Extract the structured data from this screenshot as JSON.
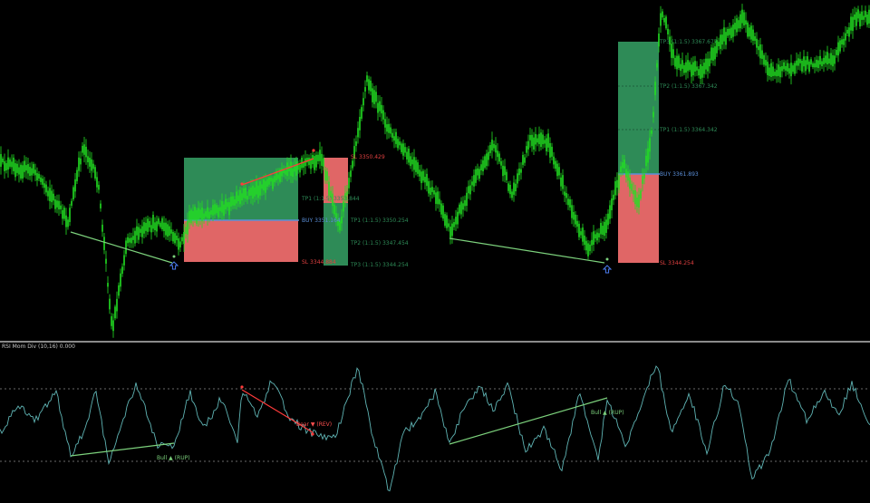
{
  "colors": {
    "candles": "#22e022",
    "tp_zone": "#2e8b57",
    "sl_zone": "#e06666",
    "buy_line": "#5b8fd9",
    "divergence_bull": "#7cd17c",
    "divergence_bear": "#ff3b3b",
    "oscillator": "#5fb4b4",
    "arrow_up": "#4b7cf0"
  },
  "icons": {
    "buy_signal": "up-arrow-icon"
  },
  "trades": [
    {
      "labels": {
        "buy": "BUY 3351.164",
        "sl": "SL 3344.884",
        "tp1": "TP1 (1:1.5) 3353.844",
        "tp_zone": "TP1 (1:1.5) 3353.844"
      }
    },
    {
      "labels": {
        "sl": "SL 3350.429",
        "tp1": "TP1 (1:1.5) 3350.254",
        "tp2": "TP2 (1:1.5) 3347.454",
        "tp3": "TP3 (1:1.5) 3344.254"
      }
    },
    {
      "labels": {
        "buy": "BUY 3361.893",
        "sl": "SL 3344.254",
        "tp1": "TP1 (1:1.5) 3364.342",
        "tp2": "TP2 (1:1.5) 3367.342",
        "tp3": "TP3 (1:1.5) 3367.677"
      }
    }
  ],
  "indicator": {
    "title": "RSI Mom Div (10,16) 0.000",
    "labels": {
      "bull1": "Bull ▲ (RUP)",
      "bear1": "Bear ▼ (REV)",
      "bull2": "Bull ▲ (RUP)"
    }
  }
}
